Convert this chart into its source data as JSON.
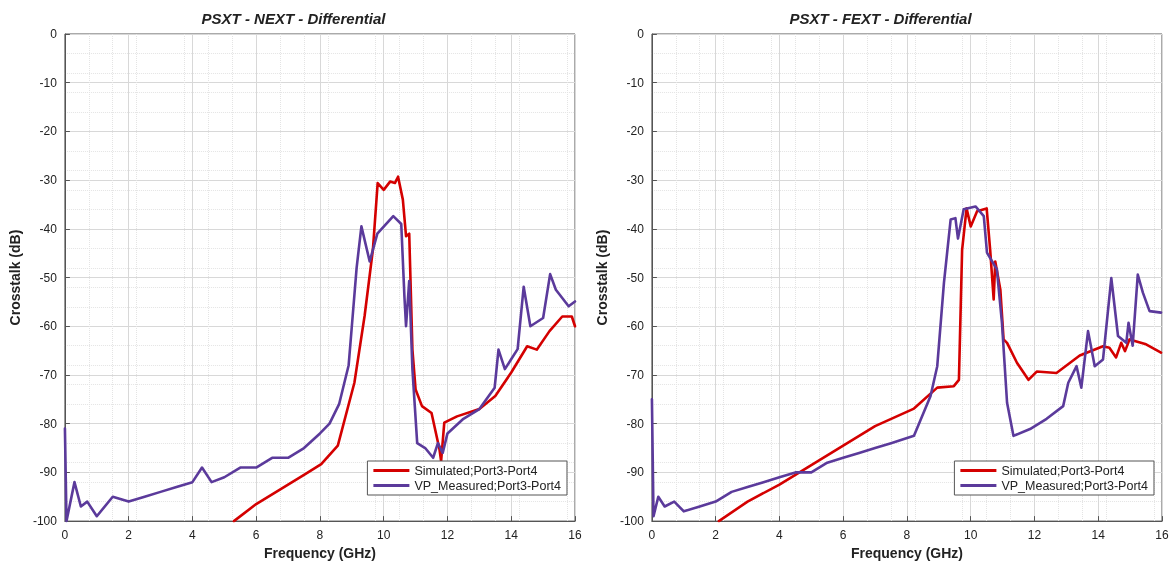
{
  "chart_data": [
    {
      "type": "line",
      "title": "PSXT - NEXT - Differential",
      "xlabel": "Frequency (GHz)",
      "ylabel": "Crosstalk (dB)",
      "xlim": [
        0,
        16
      ],
      "xticks": [
        0,
        2,
        4,
        6,
        8,
        10,
        12,
        14,
        16
      ],
      "ylim": [
        -100,
        0
      ],
      "yticks": [
        -100,
        -90,
        -80,
        -70,
        -60,
        -50,
        -40,
        -30,
        -20,
        -10,
        0
      ],
      "grid": true,
      "legend": "bottom right",
      "marker": "none",
      "line_style": "solid",
      "series": [
        {
          "name": "Simulated;Port3-Port4",
          "color": "#d40000",
          "x": [
            5.3,
            6,
            7,
            7.5,
            8.04,
            8.56,
            9.08,
            9.4,
            9.66,
            9.81,
            10,
            10.2,
            10.35,
            10.45,
            10.6,
            10.7,
            10.8,
            10.9,
            11,
            11.2,
            11.5,
            11.75,
            11.8,
            11.9,
            12.3,
            13,
            13.5,
            14,
            14.5,
            14.8,
            15.2,
            15.6,
            15.9,
            16
          ],
          "values": [
            -100,
            -96.5,
            -92.5,
            -90.5,
            -88.3,
            -84.5,
            -71.6,
            -57.9,
            -44.3,
            -30.6,
            -32,
            -30.3,
            -30.6,
            -29.3,
            -34,
            -41.5,
            -41,
            -64.8,
            -73,
            -76.4,
            -77.8,
            -85.3,
            -87.7,
            -79.8,
            -78.5,
            -77,
            -74.3,
            -69.5,
            -64.1,
            -64.8,
            -61,
            -58,
            -58,
            -60
          ]
        },
        {
          "name": "VP_Measured;Port3-Port4",
          "color": "#5b3a9b",
          "x": [
            0,
            0.05,
            0.3,
            0.5,
            0.7,
            1,
            1.5,
            2,
            2.5,
            3,
            3.5,
            4,
            4.3,
            4.6,
            5,
            5.5,
            6,
            6.5,
            7,
            7.5,
            8,
            8.3,
            8.6,
            8.9,
            9,
            9.15,
            9.3,
            9.56,
            9.8,
            10.3,
            10.55,
            10.65,
            10.7,
            10.8,
            10.9,
            11.05,
            11.3,
            11.55,
            11.7,
            11.85,
            12,
            12.5,
            13,
            13.48,
            13.6,
            13.8,
            14.2,
            14.39,
            14.6,
            15,
            15.22,
            15.4,
            15.8,
            16
          ],
          "values": [
            -81,
            -100,
            -92,
            -97,
            -96,
            -99,
            -95,
            -96,
            -95,
            -94,
            -93,
            -92,
            -89,
            -92,
            -91,
            -89,
            -89,
            -87,
            -87,
            -85,
            -82,
            -80,
            -76,
            -68,
            -60,
            -48,
            -39.5,
            -46.7,
            -41,
            -37.4,
            -39,
            -54,
            -60,
            -50.7,
            -68.8,
            -84,
            -85,
            -87,
            -84,
            -86,
            -82,
            -79,
            -77,
            -72.6,
            -64.8,
            -68.8,
            -64.7,
            -51.9,
            -60,
            -58.3,
            -49.3,
            -52.5,
            -55.9,
            -54.9
          ]
        }
      ]
    },
    {
      "type": "line",
      "title": "PSXT - FEXT - Differential",
      "xlabel": "Frequency (GHz)",
      "ylabel": "Crosstalk (dB)",
      "xlim": [
        0,
        16
      ],
      "xticks": [
        0,
        2,
        4,
        6,
        8,
        10,
        12,
        14,
        16
      ],
      "ylim": [
        -100,
        0
      ],
      "yticks": [
        -100,
        -90,
        -80,
        -70,
        -60,
        -50,
        -40,
        -30,
        -20,
        -10,
        0
      ],
      "grid": true,
      "legend": "bottom right",
      "marker": "none",
      "line_style": "solid",
      "series": [
        {
          "name": "Simulated;Port3-Port4",
          "color": "#d40000",
          "x": [
            2.1,
            3,
            4,
            5,
            6,
            7,
            8.22,
            8.95,
            9.47,
            9.63,
            9.73,
            9.87,
            10,
            10.2,
            10.5,
            10.61,
            10.72,
            10.77,
            10.93,
            11.03,
            11.14,
            11.45,
            11.81,
            12.07,
            12.69,
            13.42,
            14.15,
            14.35,
            14.56,
            14.72,
            14.84,
            14.98,
            15.5,
            15.97
          ],
          "values": [
            -100,
            -96,
            -92.5,
            -88.5,
            -84.5,
            -80.5,
            -76.9,
            -72.6,
            -72.3,
            -71,
            -44.3,
            -35.8,
            -39.5,
            -36.4,
            -35.8,
            -44.3,
            -54.5,
            -46.7,
            -52.5,
            -62.7,
            -63.4,
            -67.5,
            -71,
            -69.3,
            -69.6,
            -66,
            -64.1,
            -64.4,
            -66.4,
            -63.4,
            -65.1,
            -62.7,
            -63.7,
            -65.4
          ]
        },
        {
          "name": "VP_Measured;Port3-Port4",
          "color": "#5b3a9b",
          "x": [
            0,
            0.05,
            0.2,
            0.4,
            0.7,
            1,
            1.5,
            2,
            2.5,
            3,
            3.5,
            4,
            4.5,
            5,
            5.5,
            6,
            6.5,
            7,
            7.5,
            8.22,
            8.74,
            8.95,
            9.16,
            9.37,
            9.52,
            9.6,
            9.78,
            10.15,
            10.41,
            10.51,
            10.82,
            10.98,
            11.14,
            11.34,
            11.86,
            12.38,
            12.9,
            13.06,
            13.32,
            13.47,
            13.68,
            13.89,
            14.15,
            14.41,
            14.62,
            14.88,
            14.95,
            15.08,
            15.24,
            15.4,
            15.61,
            15.97
          ],
          "values": [
            -75,
            -99,
            -95,
            -97,
            -96,
            -98,
            -97,
            -96,
            -94,
            -93,
            -92,
            -91,
            -90,
            -90,
            -88,
            -87,
            -86,
            -85,
            -84,
            -82.5,
            -74.3,
            -68.2,
            -51.1,
            -38.1,
            -37.8,
            -42,
            -36,
            -35.4,
            -37.4,
            -44.9,
            -48.3,
            -59.3,
            -75.7,
            -82.5,
            -81.1,
            -79,
            -76.4,
            -71.6,
            -68.2,
            -72.6,
            -61,
            -68.2,
            -66.8,
            -50.1,
            -62,
            -63.4,
            -59.3,
            -64,
            -49.4,
            -53.1,
            -56.9,
            -57.2
          ]
        }
      ]
    }
  ]
}
